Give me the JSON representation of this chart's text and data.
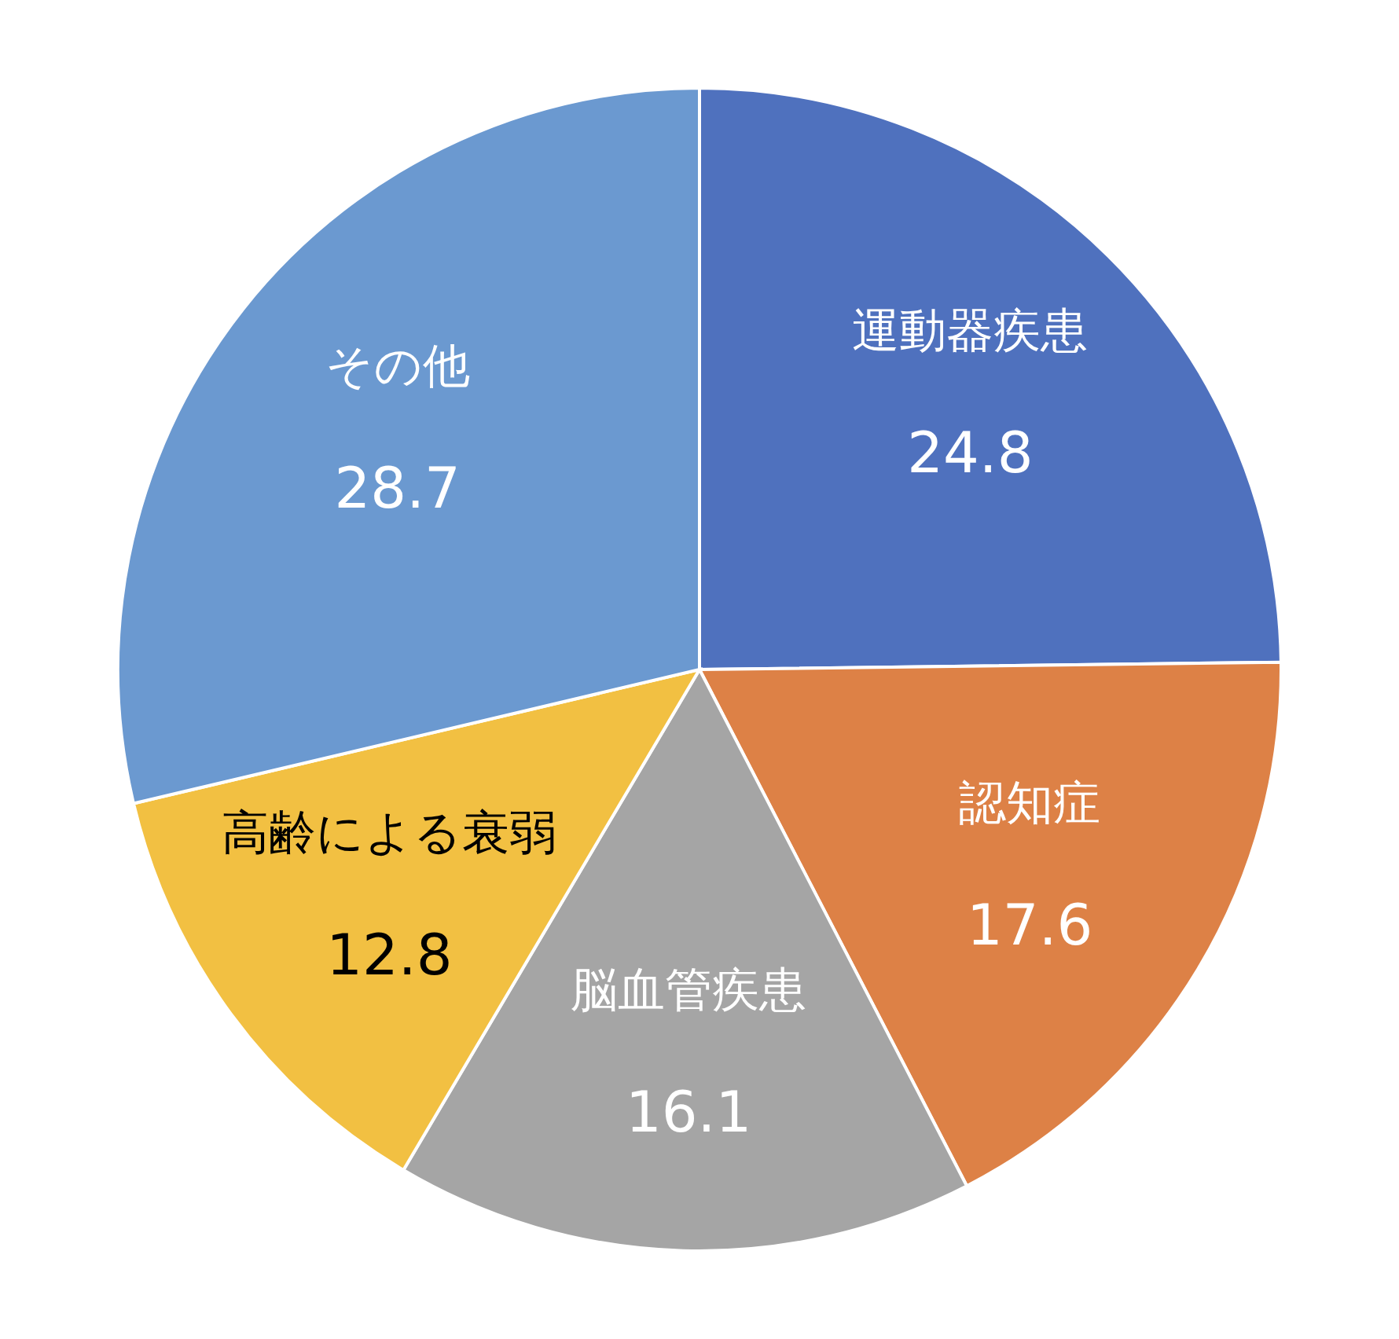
{
  "chart_data": {
    "type": "pie",
    "categories": [
      "運動器疾患",
      "認知症",
      "脳血管疾患",
      "高齢による衰弱",
      "その他"
    ],
    "values": [
      24.8,
      17.6,
      16.1,
      12.8,
      28.7
    ],
    "colors": [
      "#4f71be",
      "#dd8146",
      "#a5a5a5",
      "#f2c042",
      "#6b99d0"
    ],
    "data_labels": true
  }
}
